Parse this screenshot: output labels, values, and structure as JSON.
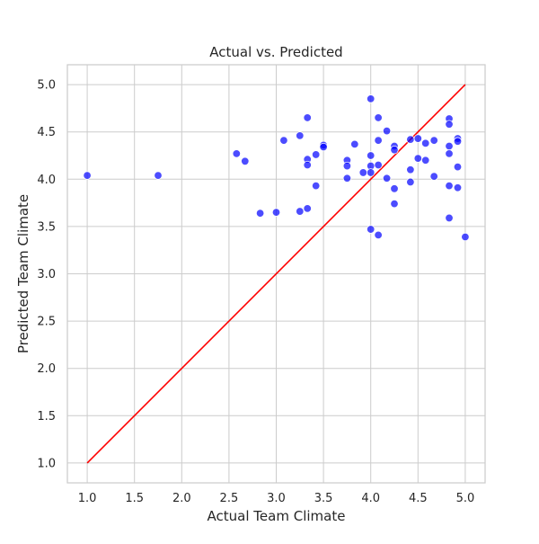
{
  "chart_data": {
    "type": "scatter",
    "title": "Actual vs. Predicted",
    "xlabel": "Actual Team Climate",
    "ylabel": "Predicted Team Climate",
    "xlim": [
      0.79,
      5.21
    ],
    "ylim": [
      0.79,
      5.21
    ],
    "x_ticks": [
      1.0,
      1.5,
      2.0,
      2.5,
      3.0,
      3.5,
      4.0,
      4.5,
      5.0
    ],
    "y_ticks": [
      1.0,
      1.5,
      2.0,
      2.5,
      3.0,
      3.5,
      4.0,
      4.5,
      5.0
    ],
    "x_tick_labels": [
      "1.0",
      "1.5",
      "2.0",
      "2.5",
      "3.0",
      "3.5",
      "4.0",
      "4.5",
      "5.0"
    ],
    "y_tick_labels": [
      "1.0",
      "1.5",
      "2.0",
      "2.5",
      "3.0",
      "3.5",
      "4.0",
      "4.5",
      "5.0"
    ],
    "grid": true,
    "point_color": "#0000ff",
    "point_alpha": 0.7,
    "line_color": "#ff0000",
    "reference_line": [
      [
        1.0,
        1.0
      ],
      [
        5.0,
        5.0
      ]
    ],
    "points": [
      [
        1.0,
        4.04
      ],
      [
        1.75,
        4.04
      ],
      [
        2.58,
        4.27
      ],
      [
        2.67,
        4.19
      ],
      [
        2.83,
        3.64
      ],
      [
        3.0,
        3.65
      ],
      [
        3.08,
        4.41
      ],
      [
        3.25,
        4.46
      ],
      [
        3.25,
        3.66
      ],
      [
        3.33,
        4.65
      ],
      [
        3.33,
        4.21
      ],
      [
        3.33,
        4.15
      ],
      [
        3.33,
        3.69
      ],
      [
        3.42,
        4.26
      ],
      [
        3.42,
        3.93
      ],
      [
        3.5,
        4.36
      ],
      [
        3.5,
        4.34
      ],
      [
        3.75,
        4.2
      ],
      [
        3.75,
        4.14
      ],
      [
        3.75,
        4.01
      ],
      [
        3.83,
        4.37
      ],
      [
        3.92,
        4.07
      ],
      [
        4.0,
        4.85
      ],
      [
        4.0,
        4.25
      ],
      [
        4.0,
        4.14
      ],
      [
        4.0,
        4.07
      ],
      [
        4.0,
        3.47
      ],
      [
        4.08,
        4.65
      ],
      [
        4.08,
        4.41
      ],
      [
        4.08,
        4.15
      ],
      [
        4.08,
        3.41
      ],
      [
        4.17,
        4.51
      ],
      [
        4.17,
        4.01
      ],
      [
        4.25,
        4.35
      ],
      [
        4.25,
        4.31
      ],
      [
        4.25,
        3.9
      ],
      [
        4.25,
        3.74
      ],
      [
        4.42,
        4.42
      ],
      [
        4.42,
        4.1
      ],
      [
        4.42,
        3.97
      ],
      [
        4.5,
        4.43
      ],
      [
        4.5,
        4.22
      ],
      [
        4.58,
        4.38
      ],
      [
        4.58,
        4.2
      ],
      [
        4.67,
        4.41
      ],
      [
        4.67,
        4.03
      ],
      [
        4.83,
        4.64
      ],
      [
        4.83,
        4.58
      ],
      [
        4.83,
        4.35
      ],
      [
        4.83,
        4.27
      ],
      [
        4.83,
        3.93
      ],
      [
        4.83,
        3.59
      ],
      [
        4.92,
        4.43
      ],
      [
        4.92,
        4.4
      ],
      [
        4.92,
        4.13
      ],
      [
        4.92,
        3.91
      ],
      [
        5.0,
        3.39
      ]
    ]
  }
}
